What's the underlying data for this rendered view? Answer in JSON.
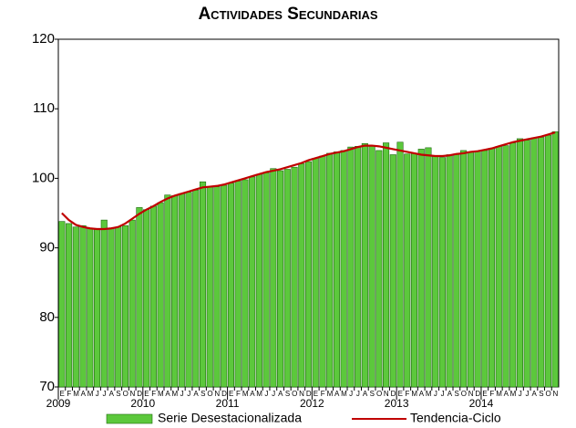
{
  "chart_data": {
    "type": "bar",
    "title": "Actividades Secundarias",
    "categories": [
      "E",
      "F",
      "M",
      "A",
      "M",
      "J",
      "J",
      "A",
      "S",
      "O",
      "N",
      "D",
      "E",
      "F",
      "M",
      "A",
      "M",
      "J",
      "J",
      "A",
      "S",
      "O",
      "N",
      "D",
      "E",
      "F",
      "M",
      "A",
      "M",
      "J",
      "J",
      "A",
      "S",
      "O",
      "N",
      "D",
      "E",
      "F",
      "M",
      "A",
      "M",
      "J",
      "J",
      "A",
      "S",
      "O",
      "N",
      "D",
      "E",
      "F",
      "M",
      "A",
      "M",
      "J",
      "J",
      "A",
      "S",
      "O",
      "N",
      "D",
      "E",
      "F",
      "M",
      "A",
      "M",
      "J",
      "J",
      "A",
      "S",
      "O",
      "N"
    ],
    "year_labels": [
      "2009",
      "2010",
      "2011",
      "2012",
      "2013",
      "2014"
    ],
    "series": [
      {
        "name": "Serie Desestacionalizada",
        "type": "bar",
        "color": "#5cc83c",
        "values": [
          93.8,
          93.5,
          93.0,
          93.2,
          92.8,
          92.8,
          94.0,
          92.8,
          93.0,
          93.2,
          94.0,
          95.8,
          95.5,
          96.0,
          96.5,
          97.6,
          97.5,
          97.8,
          98.0,
          98.3,
          99.5,
          98.8,
          98.8,
          99.0,
          99.3,
          99.6,
          99.8,
          100.2,
          100.6,
          100.8,
          101.4,
          101.1,
          101.3,
          101.6,
          102.1,
          102.4,
          102.9,
          103.2,
          103.6,
          103.8,
          104.0,
          104.5,
          104.6,
          105.0,
          104.7,
          104.0,
          105.1,
          103.4,
          105.2,
          103.5,
          103.6,
          104.2,
          104.4,
          103.2,
          103.0,
          103.4,
          103.5,
          104.0,
          103.8,
          103.9,
          104.0,
          104.3,
          104.6,
          104.7,
          105.1,
          105.7,
          105.5,
          105.8,
          105.9,
          106.2,
          106.7
        ]
      },
      {
        "name": "Tendencia-Ciclo",
        "type": "line",
        "color": "#c00000",
        "values": [
          95.0,
          94.0,
          93.3,
          93.0,
          92.8,
          92.7,
          92.7,
          92.8,
          93.0,
          93.5,
          94.2,
          94.9,
          95.5,
          96.0,
          96.6,
          97.1,
          97.5,
          97.8,
          98.1,
          98.4,
          98.7,
          98.8,
          98.9,
          99.1,
          99.4,
          99.7,
          100.0,
          100.3,
          100.6,
          100.9,
          101.1,
          101.3,
          101.6,
          101.9,
          102.2,
          102.6,
          102.9,
          103.2,
          103.5,
          103.7,
          103.9,
          104.2,
          104.5,
          104.7,
          104.7,
          104.6,
          104.4,
          104.2,
          104.0,
          103.8,
          103.6,
          103.4,
          103.3,
          103.2,
          103.2,
          103.3,
          103.5,
          103.6,
          103.8,
          103.9,
          104.1,
          104.3,
          104.6,
          104.9,
          105.2,
          105.4,
          105.6,
          105.8,
          106.0,
          106.3,
          106.6
        ]
      }
    ],
    "ylim": [
      70,
      120
    ],
    "yticks": [
      70,
      80,
      90,
      100,
      110,
      120
    ],
    "grid": false
  }
}
